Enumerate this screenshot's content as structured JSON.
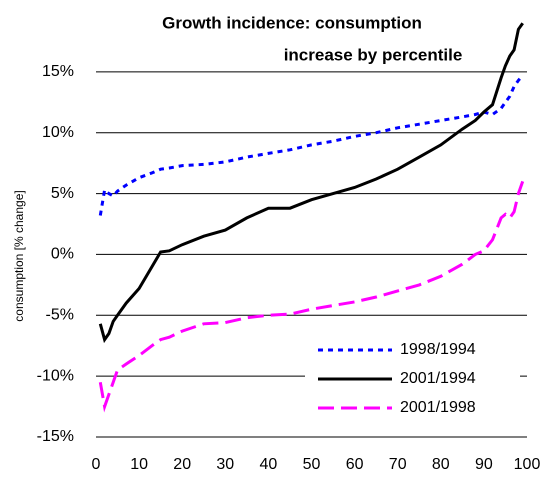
{
  "chart_data": {
    "type": "line",
    "title": [
      "Growth incidence: consumption",
      "increase by percentile"
    ],
    "y_label": "consumption [% change]",
    "x": [
      1,
      2,
      3,
      4,
      5,
      7,
      10,
      13,
      15,
      17,
      20,
      25,
      30,
      35,
      40,
      45,
      50,
      55,
      60,
      65,
      70,
      75,
      80,
      85,
      88,
      90,
      92,
      94,
      95,
      96,
      97,
      98,
      99
    ],
    "series": [
      {
        "name": "1998/1994",
        "color": "#0000ff",
        "style": "dotted",
        "values": [
          3.2,
          5.3,
          5.0,
          4.8,
          5.2,
          5.7,
          6.3,
          6.7,
          7.0,
          7.1,
          7.3,
          7.4,
          7.6,
          8.0,
          8.3,
          8.6,
          9.0,
          9.3,
          9.7,
          10.0,
          10.4,
          10.7,
          11.0,
          11.3,
          11.5,
          11.7,
          11.5,
          12.0,
          12.5,
          13.0,
          13.8,
          14.3,
          14.7
        ]
      },
      {
        "name": "2001/1994",
        "color": "#000000",
        "style": "solid",
        "values": [
          -5.7,
          -7.0,
          -6.5,
          -5.5,
          -5.0,
          -4.0,
          -2.8,
          -1.0,
          0.2,
          0.3,
          0.8,
          1.5,
          2.0,
          3.0,
          3.8,
          3.8,
          4.5,
          5.0,
          5.5,
          6.2,
          7.0,
          8.0,
          9.0,
          10.3,
          11.0,
          11.7,
          12.3,
          14.5,
          15.5,
          16.3,
          16.8,
          18.5,
          19.0
        ]
      },
      {
        "name": "2001/1998",
        "color": "#ff00ff",
        "style": "dashed",
        "values": [
          -10.5,
          -12.5,
          -11.5,
          -10.5,
          -9.5,
          -9.0,
          -8.3,
          -7.5,
          -7.0,
          -6.8,
          -6.3,
          -5.7,
          -5.6,
          -5.2,
          -5.0,
          -4.9,
          -4.5,
          -4.2,
          -3.9,
          -3.5,
          -3.0,
          -2.5,
          -1.8,
          -0.8,
          0.0,
          0.3,
          1.2,
          3.0,
          3.3,
          3.0,
          3.5,
          5.0,
          6.0
        ]
      }
    ],
    "xlim": [
      0,
      100
    ],
    "xticks": [
      0,
      10,
      20,
      30,
      40,
      50,
      60,
      70,
      80,
      90,
      100
    ],
    "ylim": [
      -15,
      20
    ],
    "yticks": [
      {
        "value": -15,
        "label": "-15%"
      },
      {
        "value": -10,
        "label": "-10%"
      },
      {
        "value": -5,
        "label": "-5%"
      },
      {
        "value": 0,
        "label": "0%"
      },
      {
        "value": 5,
        "label": "5%"
      },
      {
        "value": 10,
        "label": "10%"
      },
      {
        "value": 15,
        "label": "15%"
      }
    ],
    "grid": true,
    "legend": "lower right"
  }
}
